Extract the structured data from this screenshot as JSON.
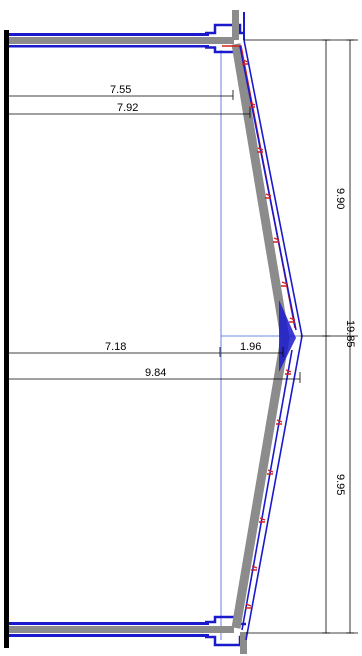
{
  "colors": {
    "wall": "#000000",
    "structure": "#8c8c8c",
    "outline": "#1a1acc",
    "accent_red": "#d42020",
    "guide": "#3f5fd8",
    "dimension": "#000000"
  },
  "dimensions": {
    "upper_inner_width": "7.55",
    "upper_outer_width": "7.92",
    "waist_inner_width": "7.18",
    "waist_outer_width": "9.84",
    "apex_offset": "1.96",
    "upper_height": "9.90",
    "total_height": "19.85",
    "lower_height": "9.95"
  }
}
